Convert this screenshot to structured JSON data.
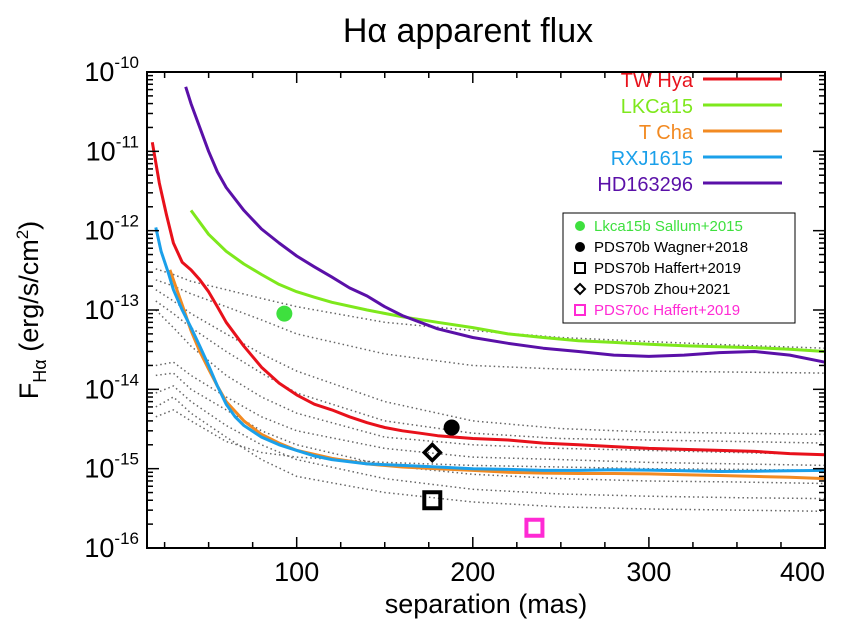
{
  "chart_data": {
    "type": "line",
    "title": "Hα apparent flux",
    "xlabel": "separation (mas)",
    "ylabel": {
      "main": "F",
      "sub": "Hα",
      "unit": " (erg/s/cm",
      "unit_sup": "2",
      "unit_close": ")"
    },
    "x_scale": "linear",
    "y_scale": "log",
    "xlim": [
      15,
      400
    ],
    "ylim": [
      1e-16,
      1e-10
    ],
    "xticks": [
      {
        "value": 100,
        "label": "100"
      },
      {
        "value": 200,
        "label": "200"
      },
      {
        "value": 300,
        "label": "300"
      },
      {
        "value": 400,
        "label": "400"
      }
    ],
    "yticks": [
      {
        "value": -10,
        "base": "10",
        "exp": "-10"
      },
      {
        "value": -11,
        "base": "10",
        "exp": "-11"
      },
      {
        "value": -12,
        "base": "10",
        "exp": "-12"
      },
      {
        "value": -13,
        "base": "10",
        "exp": "-13"
      },
      {
        "value": -14,
        "base": "10",
        "exp": "-14"
      },
      {
        "value": -15,
        "base": "10",
        "exp": "-15"
      },
      {
        "value": -16,
        "base": "10",
        "exp": "-16"
      }
    ],
    "grid": false,
    "series": [
      {
        "name": "TW Hya",
        "color": "#e8111b",
        "x": [
          18,
          22,
          26,
          30,
          35,
          40,
          45,
          50,
          55,
          60,
          70,
          80,
          90,
          100,
          110,
          120,
          130,
          140,
          150,
          160,
          170,
          180,
          190,
          200,
          220,
          240,
          260,
          280,
          300,
          320,
          340,
          360,
          380,
          400
        ],
        "y": [
          1.3e-11,
          4e-12,
          1.6e-12,
          7e-13,
          4e-13,
          3.2e-13,
          2.4e-13,
          1.7e-13,
          1.1e-13,
          7e-14,
          3.5e-14,
          1.9e-14,
          1.2e-14,
          8.5e-15,
          6.5e-15,
          5.5e-15,
          4.5e-15,
          3.8e-15,
          3.3e-15,
          3e-15,
          2.8e-15,
          2.6e-15,
          2.5e-15,
          2.4e-15,
          2.3e-15,
          2.1e-15,
          2e-15,
          1.9e-15,
          1.8e-15,
          1.75e-15,
          1.7e-15,
          1.65e-15,
          1.55e-15,
          1.5e-15
        ]
      },
      {
        "name": "LKCa15",
        "color": "#7ee81c",
        "x": [
          40,
          50,
          60,
          70,
          80,
          90,
          100,
          110,
          120,
          140,
          160,
          180,
          200,
          220,
          240,
          260,
          280,
          300,
          320,
          340,
          360,
          380,
          400
        ],
        "y": [
          1.8e-12,
          9e-13,
          5.5e-13,
          3.8e-13,
          2.8e-13,
          2.1e-13,
          1.7e-13,
          1.45e-13,
          1.25e-13,
          1e-13,
          8.2e-14,
          7e-14,
          6e-14,
          5e-14,
          4.5e-14,
          4.1e-14,
          3.9e-14,
          3.7e-14,
          3.55e-14,
          3.45e-14,
          3.35e-14,
          3.2e-14,
          3e-14
        ]
      },
      {
        "name": "T Cha",
        "color": "#f28a22",
        "x": [
          28,
          32,
          36,
          40,
          45,
          50,
          55,
          60,
          70,
          80,
          90,
          100,
          120,
          140,
          160,
          180,
          200,
          220,
          240,
          260,
          280,
          300,
          320,
          340,
          360,
          380,
          400
        ],
        "y": [
          3.2e-13,
          1.8e-13,
          1e-13,
          5.5e-14,
          3e-14,
          1.8e-14,
          1.1e-14,
          7e-15,
          4e-15,
          2.7e-15,
          2.1e-15,
          1.7e-15,
          1.35e-15,
          1.15e-15,
          1.05e-15,
          1e-15,
          9.5e-16,
          9e-16,
          8.8e-16,
          8.7e-16,
          8.7e-16,
          8.6e-16,
          8.4e-16,
          8.2e-16,
          8e-16,
          7.8e-16,
          7.5e-16
        ]
      },
      {
        "name": "RXJ1615",
        "color": "#1ba0ea",
        "x": [
          20,
          23,
          27,
          30,
          35,
          40,
          45,
          50,
          55,
          60,
          65,
          70,
          80,
          90,
          100,
          110,
          120,
          140,
          160,
          180,
          200,
          220,
          240,
          260,
          280,
          300,
          320,
          340,
          360,
          380,
          400
        ],
        "y": [
          1.1e-12,
          5.5e-13,
          3e-13,
          1.8e-13,
          1e-13,
          6e-14,
          3.5e-14,
          2e-14,
          1.1e-14,
          6.5e-15,
          4.5e-15,
          3.5e-15,
          2.5e-15,
          2e-15,
          1.7e-15,
          1.45e-15,
          1.3e-15,
          1.15e-15,
          1.1e-15,
          1.05e-15,
          1e-15,
          9.8e-16,
          9.5e-16,
          9.5e-16,
          9.7e-16,
          9.6e-16,
          9.4e-16,
          9.2e-16,
          9.3e-16,
          9.4e-16,
          9.5e-16
        ]
      },
      {
        "name": "HD163296",
        "color": "#5a10a8",
        "x": [
          37,
          40,
          45,
          50,
          55,
          60,
          70,
          80,
          90,
          100,
          110,
          120,
          130,
          140,
          150,
          160,
          180,
          200,
          220,
          240,
          260,
          280,
          300,
          320,
          340,
          360,
          380,
          400
        ],
        "y": [
          6.5e-11,
          4e-11,
          2e-11,
          1e-11,
          5.5e-12,
          3.5e-12,
          1.8e-12,
          1.05e-12,
          7e-13,
          4.8e-13,
          3.5e-13,
          2.6e-13,
          1.9e-13,
          1.5e-13,
          1.1e-13,
          8.5e-14,
          5.8e-14,
          4.5e-14,
          3.8e-14,
          3.3e-14,
          3e-14,
          2.7e-14,
          2.6e-14,
          2.7e-14,
          2.9e-14,
          3e-14,
          2.7e-14,
          2.2e-14
        ]
      }
    ],
    "background_curves": {
      "style": "gray dotted",
      "curves": [
        {
          "x": [
            20,
            30,
            40,
            60,
            80,
            100,
            150,
            200,
            250,
            300,
            350,
            400
          ],
          "y": [
            3.3e-13,
            2.8e-13,
            2.3e-13,
            1.8e-13,
            1.4e-13,
            1.1e-13,
            7e-14,
            5.5e-14,
            4.5e-14,
            4e-14,
            3.6e-14,
            3.3e-14
          ]
        },
        {
          "x": [
            20,
            30,
            40,
            60,
            80,
            100,
            150,
            200,
            250,
            300,
            350,
            400
          ],
          "y": [
            2.4e-13,
            2e-13,
            1.6e-13,
            1.1e-13,
            7.5e-14,
            5e-14,
            2.8e-14,
            2e-14,
            1.8e-14,
            1.7e-14,
            1.65e-14,
            1.6e-14
          ]
        },
        {
          "x": [
            20,
            30,
            40,
            60,
            80,
            100,
            150,
            200,
            250,
            300,
            350,
            400
          ],
          "y": [
            1.8e-13,
            1.3e-13,
            9e-14,
            5e-14,
            2.8e-14,
            1.7e-14,
            7e-15,
            4e-15,
            3.2e-15,
            2.9e-15,
            2.8e-15,
            2.7e-15
          ]
        },
        {
          "x": [
            20,
            30,
            40,
            60,
            80,
            100,
            150,
            200,
            250,
            300,
            350,
            400
          ],
          "y": [
            1.3e-13,
            9e-14,
            6e-14,
            3e-14,
            1.6e-14,
            9e-15,
            4e-15,
            2.8e-15,
            2.4e-15,
            2.3e-15,
            2.2e-15,
            2.1e-15
          ]
        },
        {
          "x": [
            20,
            30,
            40,
            60,
            80,
            100,
            150,
            200,
            250,
            300,
            350,
            400
          ],
          "y": [
            1e-13,
            6e-14,
            3.5e-14,
            1.5e-14,
            8e-15,
            5e-15,
            2.5e-15,
            2e-15,
            1.8e-15,
            1.7e-15,
            1.6e-15,
            1.5e-15
          ]
        },
        {
          "x": [
            20,
            30,
            40,
            60,
            80,
            100,
            150,
            200,
            250,
            300,
            350,
            400
          ],
          "y": [
            2e-14,
            2.2e-14,
            1.5e-14,
            8e-15,
            4.5e-15,
            3e-15,
            1.8e-15,
            1.4e-15,
            1.3e-15,
            1.2e-15,
            1.15e-15,
            1.1e-15
          ]
        },
        {
          "x": [
            20,
            30,
            40,
            60,
            80,
            100,
            150,
            200,
            250,
            300,
            350,
            400
          ],
          "y": [
            1.5e-14,
            1.6e-14,
            1e-14,
            5.5e-15,
            3e-15,
            2e-15,
            1.1e-15,
            8.5e-16,
            7.5e-16,
            7e-16,
            6.8e-16,
            6.5e-16
          ]
        },
        {
          "x": [
            20,
            30,
            40,
            60,
            80,
            100,
            150,
            200,
            250,
            300,
            350,
            400
          ],
          "y": [
            9e-15,
            1.1e-14,
            7e-15,
            3.5e-15,
            2e-15,
            1.3e-15,
            7.5e-16,
            5.5e-16,
            4.8e-16,
            4.5e-16,
            4.3e-16,
            4.2e-16
          ]
        },
        {
          "x": [
            20,
            30,
            40,
            60,
            80,
            100,
            150,
            200,
            250,
            300,
            350,
            400
          ],
          "y": [
            6e-15,
            8e-15,
            5e-15,
            2.5e-15,
            1.3e-15,
            8e-16,
            5e-16,
            3.8e-16,
            3.3e-16,
            3.1e-16,
            3e-16,
            2.9e-16
          ]
        },
        {
          "x": [
            20,
            30,
            40,
            60,
            80,
            100,
            150,
            200,
            250,
            300,
            350,
            400
          ],
          "y": [
            4.5e-15,
            5.5e-15,
            4e-15,
            2.2e-15,
            1.6e-15,
            1.4e-15,
            1.2e-15,
            1.1e-15,
            1.05e-15,
            1e-15,
            9.8e-16,
            9.5e-16
          ]
        }
      ]
    },
    "points": [
      {
        "name": "Lkca15b Sallum+2015",
        "x": 93,
        "y": 9e-14,
        "marker": "filled-circle",
        "color": "#3ee03e"
      },
      {
        "name": "PDS70b Wagner+2018",
        "x": 188,
        "y": 3.3e-15,
        "marker": "filled-circle",
        "color": "#000000"
      },
      {
        "name": "PDS70b Haffert+2019",
        "x": 177,
        "y": 4e-16,
        "marker": "open-square",
        "color": "#000000"
      },
      {
        "name": "PDS70b Zhou+2021",
        "x": 177,
        "y": 1.6e-15,
        "marker": "open-diamond",
        "color": "#000000"
      },
      {
        "name": "PDS70c Haffert+2019",
        "x": 235,
        "y": 1.8e-16,
        "marker": "open-square",
        "color": "#ff2ad4"
      }
    ],
    "legend": {
      "lines_placement": "top-right",
      "markers_placement": "upper-right",
      "marker_entries": [
        {
          "label": "Lkca15b Sallum+2015",
          "color": "#3ee03e",
          "marker": "filled-circle"
        },
        {
          "label": "PDS70b Wagner+2018",
          "color": "#000000",
          "marker": "filled-circle"
        },
        {
          "label": "PDS70b Haffert+2019",
          "color": "#000000",
          "marker": "open-square"
        },
        {
          "label": "PDS70b Zhou+2021",
          "color": "#000000",
          "marker": "open-diamond"
        },
        {
          "label": "PDS70c Haffert+2019",
          "color": "#ff2ad4",
          "marker": "open-square"
        }
      ]
    }
  }
}
